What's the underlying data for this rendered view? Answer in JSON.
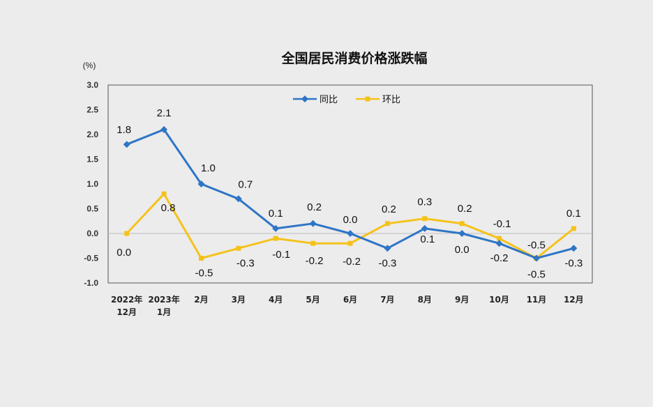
{
  "chart_data": {
    "type": "line",
    "title": "全国居民消费价格涨跌幅",
    "unit_label": "(%)",
    "ylim": [
      -1.0,
      3.0
    ],
    "yticks": [
      "3.0",
      "2.5",
      "2.0",
      "1.5",
      "1.0",
      "0.5",
      "0.0",
      "-0.5",
      "-1.0"
    ],
    "grid": false,
    "legend_position": "top-center",
    "categories": [
      [
        "2022年",
        "12月"
      ],
      [
        "2023年",
        "1月"
      ],
      [
        "2月"
      ],
      [
        "3月"
      ],
      [
        "4月"
      ],
      [
        "5月"
      ],
      [
        "6月"
      ],
      [
        "7月"
      ],
      [
        "8月"
      ],
      [
        "9月"
      ],
      [
        "10月"
      ],
      [
        "11月"
      ],
      [
        "12月"
      ]
    ],
    "series": [
      {
        "name": "同比",
        "color": "#2e75c6",
        "marker": "diamond",
        "values": [
          1.8,
          2.1,
          1.0,
          0.7,
          0.1,
          0.2,
          0.0,
          -0.3,
          0.1,
          0.0,
          -0.2,
          -0.5,
          -0.3
        ],
        "labels": [
          "1.8",
          "2.1",
          "1.0",
          "0.7",
          "0.1",
          "0.2",
          "0.0",
          "-0.3",
          "0.1",
          "0.0",
          "-0.2",
          "-0.5",
          "-0.3"
        ]
      },
      {
        "name": "环比",
        "color": "#f5c21b",
        "marker": "square",
        "values": [
          0.0,
          0.8,
          -0.5,
          -0.3,
          -0.1,
          -0.2,
          -0.2,
          0.2,
          0.3,
          0.2,
          -0.1,
          -0.5,
          0.1
        ],
        "labels": [
          "0.0",
          "0.8",
          "-0.5",
          "-0.3",
          "-0.1",
          "-0.2",
          "-0.2",
          "0.2",
          "0.3",
          "0.2",
          "-0.1",
          "-0.5",
          "0.1"
        ]
      }
    ]
  }
}
